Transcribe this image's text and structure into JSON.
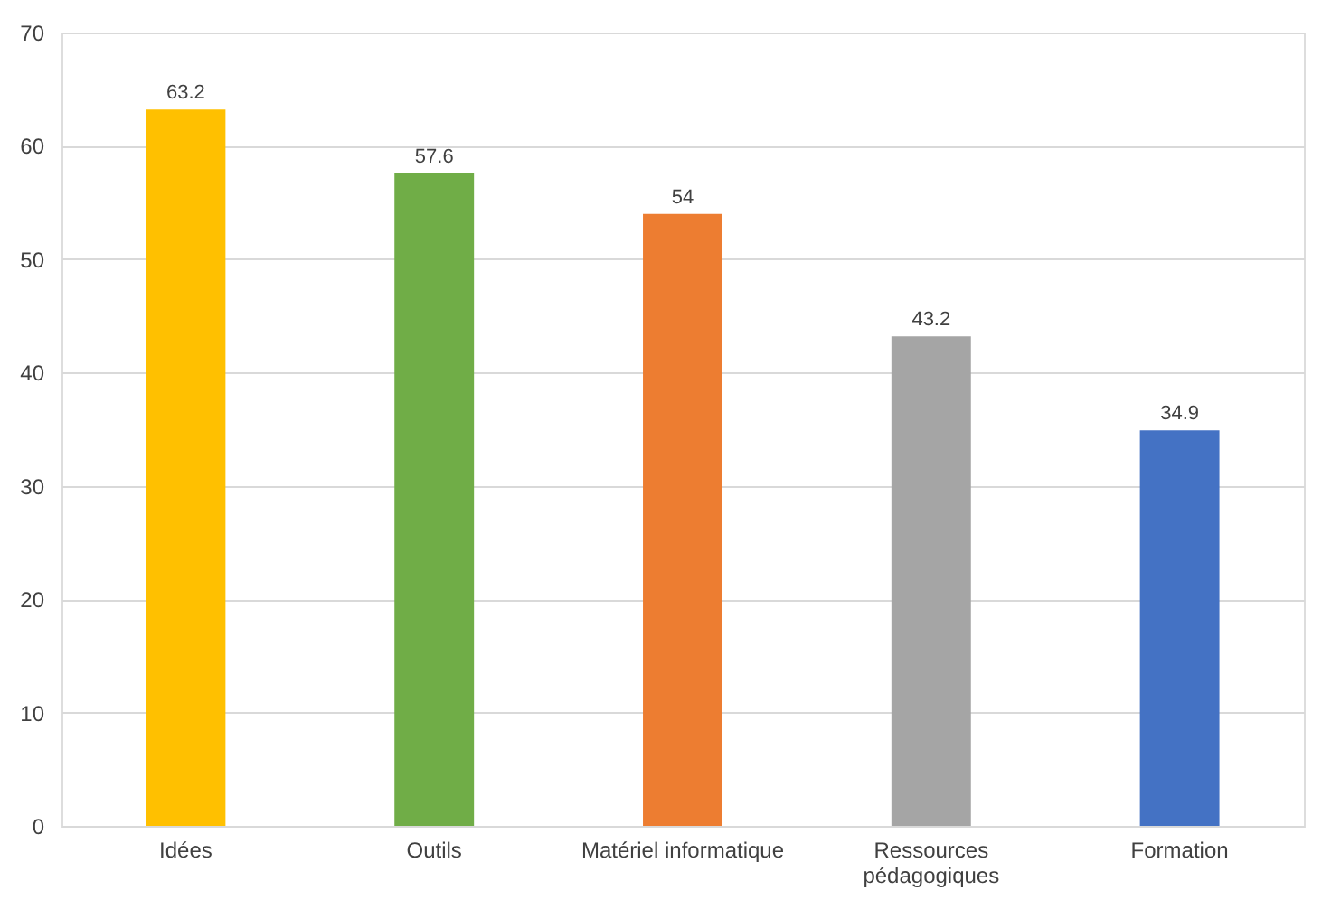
{
  "chart_data": {
    "type": "bar",
    "categories": [
      "Idées",
      "Outils",
      "Matériel informatique",
      "Ressources pédagogiques",
      "Formation"
    ],
    "values": [
      63.2,
      57.6,
      54,
      43.2,
      34.9
    ],
    "colors": [
      "#ffc000",
      "#70ad47",
      "#ed7d31",
      "#a5a5a5",
      "#4472c4"
    ],
    "ylim": [
      0,
      70
    ],
    "yticks": [
      0,
      10,
      20,
      30,
      40,
      50,
      60,
      70
    ],
    "grid": "y",
    "data_labels": true,
    "legend": false
  }
}
